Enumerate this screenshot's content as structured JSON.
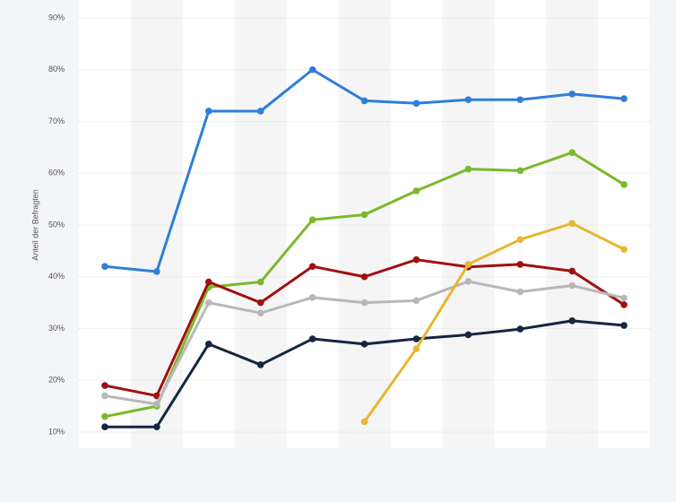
{
  "chart_data": {
    "type": "line",
    "y_label": "Anteil der Befragten",
    "categories": [
      null,
      null,
      null,
      null,
      null,
      null,
      null,
      null,
      null,
      null,
      null
    ],
    "series": [
      {
        "color": "#2f7ed8",
        "values": [
          42,
          41,
          72,
          72,
          80,
          74,
          73.5,
          74.2,
          74.2,
          75.3,
          74.4
        ]
      },
      {
        "color": "#7ab929",
        "values": [
          13,
          15,
          38,
          39,
          51,
          52,
          56.6,
          60.8,
          60.5,
          64,
          57.8
        ]
      },
      {
        "color": "#a01010",
        "values": [
          19,
          17,
          39,
          35,
          42,
          40,
          43.3,
          41.9,
          42.4,
          41.1,
          34.6
        ]
      },
      {
        "color": "#b8b8b8",
        "values": [
          17,
          15.4,
          35,
          33,
          36,
          35,
          35.4,
          39.1,
          37.1,
          38.3,
          35.9
        ]
      },
      {
        "color": "#15263f",
        "values": [
          11,
          11,
          27,
          23,
          28,
          27,
          28,
          28.8,
          29.9,
          31.5,
          30.6
        ]
      },
      {
        "color": "#e8b631",
        "values": [
          null,
          null,
          null,
          null,
          null,
          12,
          26.1,
          42.4,
          47.2,
          50.3,
          45.3
        ]
      }
    ],
    "ylim": [
      10,
      90
    ],
    "yticks": [
      {
        "value": 10,
        "label": "10%"
      },
      {
        "value": 20,
        "label": "20%"
      },
      {
        "value": 30,
        "label": "30%"
      },
      {
        "value": 40,
        "label": "40%"
      },
      {
        "value": 50,
        "label": "50%"
      },
      {
        "value": 60,
        "label": "60%"
      },
      {
        "value": 70,
        "label": "70%"
      },
      {
        "value": 80,
        "label": "80%"
      },
      {
        "value": 90,
        "label": "90%"
      }
    ],
    "grid": true
  }
}
